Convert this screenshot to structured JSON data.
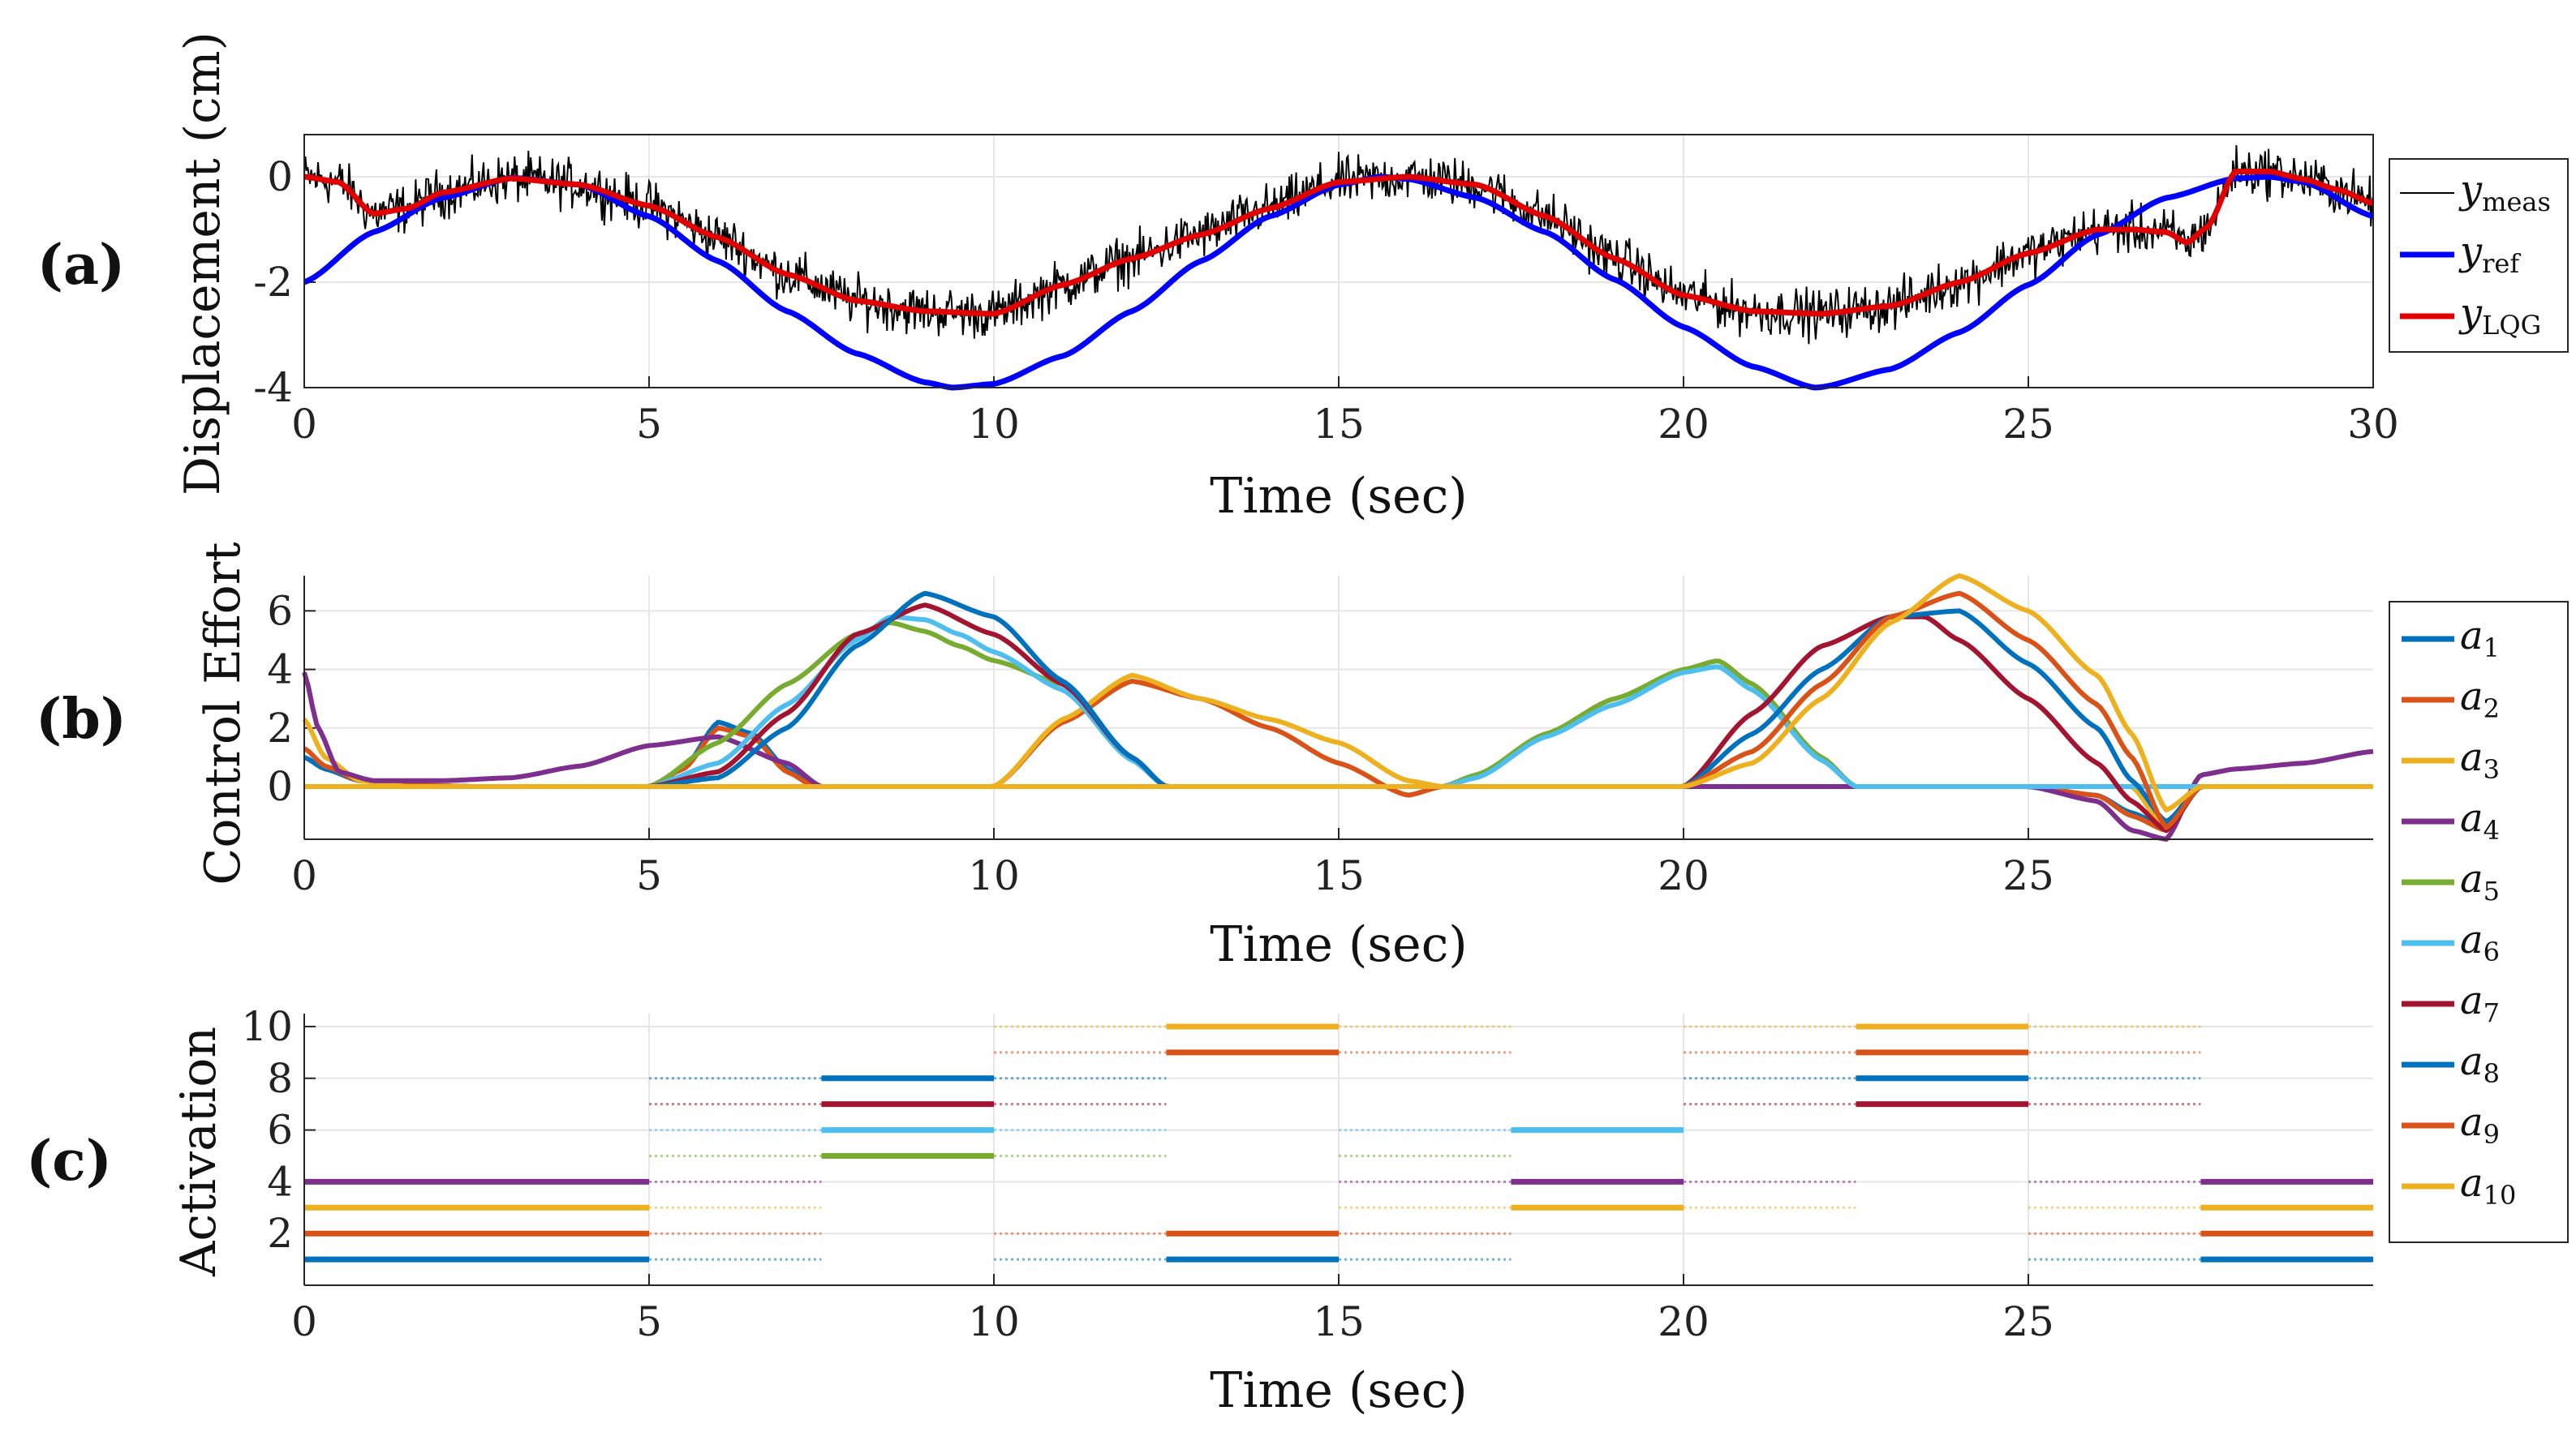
{
  "panels": {
    "a": {
      "label": "(a)",
      "ylabel": "Displacement (cm)",
      "xlabel": "Time (sec)"
    },
    "b": {
      "label": "(b)",
      "ylabel": "Control Effort",
      "xlabel": "Time (sec)"
    },
    "c": {
      "label": "(c)",
      "ylabel": "Activation",
      "xlabel": "Time (sec)"
    }
  },
  "colors": {
    "meas": "#000000",
    "ref": "#0000ff",
    "lqg": "#e00000",
    "a1": "#0072bd",
    "a2": "#d95319",
    "a3": "#edb120",
    "a4": "#7e2f8e",
    "a5": "#77ac30",
    "a6": "#4dbeee",
    "a7": "#a2142f",
    "a8": "#0072bd",
    "a9": "#d95319",
    "a10": "#edb120"
  },
  "chart_data": [
    {
      "type": "line",
      "id": "a",
      "title": "",
      "xlabel": "Time (sec)",
      "ylabel": "Displacement (cm)",
      "xlim": [
        0,
        30
      ],
      "ylim": [
        -4,
        0.8
      ],
      "xticks": [
        0,
        5,
        10,
        15,
        20,
        25,
        30
      ],
      "yticks": [
        -4,
        -2,
        0
      ],
      "ytick_labels": [
        "-4",
        "-2",
        "0"
      ],
      "grid": true,
      "legend_position": "outside-right",
      "legend": [
        {
          "base": "y",
          "sub": "meas"
        },
        {
          "base": "y",
          "sub": "ref"
        },
        {
          "base": "y",
          "sub": "LQG"
        }
      ],
      "series": [
        {
          "name": "y_meas",
          "style": "noisy",
          "noise_amplitude": 0.35,
          "follows": "y_LQG"
        },
        {
          "name": "y_ref",
          "x": [
            0,
            1,
            2,
            3,
            4,
            5,
            6,
            7,
            8,
            9,
            9.4,
            10,
            11,
            12,
            13,
            14,
            15,
            15.6,
            16,
            17,
            18,
            19,
            20,
            21,
            21.9,
            22,
            23,
            24,
            25,
            26,
            27,
            28,
            28.5,
            29,
            30
          ],
          "y": [
            -2,
            -1.05,
            -0.4,
            -0.02,
            -0.15,
            -0.75,
            -1.6,
            -2.55,
            -3.35,
            -3.9,
            -4.0,
            -3.93,
            -3.4,
            -2.55,
            -1.6,
            -0.75,
            -0.15,
            0.0,
            -0.04,
            -0.4,
            -1.05,
            -1.95,
            -2.85,
            -3.6,
            -4.0,
            -3.99,
            -3.65,
            -2.95,
            -2.05,
            -1.1,
            -0.4,
            -0.03,
            0.0,
            -0.1,
            -0.75
          ]
        },
        {
          "name": "y_LQG",
          "x": [
            0,
            0.5,
            1,
            1.5,
            2,
            3,
            4,
            5,
            6,
            7,
            8,
            9,
            10,
            11,
            12,
            13,
            14,
            15,
            16,
            17,
            18,
            19,
            20,
            21,
            22,
            23,
            24,
            25,
            26,
            26.5,
            27,
            27.3,
            27.6,
            28,
            28.5,
            29,
            29.5,
            30
          ],
          "y": [
            0,
            -0.1,
            -0.7,
            -0.6,
            -0.3,
            -0.03,
            -0.15,
            -0.55,
            -1.15,
            -1.85,
            -2.35,
            -2.55,
            -2.6,
            -2.05,
            -1.55,
            -1.1,
            -0.6,
            -0.1,
            0.0,
            -0.15,
            -0.75,
            -1.55,
            -2.25,
            -2.55,
            -2.6,
            -2.45,
            -2.0,
            -1.45,
            -1.0,
            -1.0,
            -1.05,
            -1.25,
            -0.95,
            0.1,
            0.1,
            -0.05,
            -0.25,
            -0.5
          ]
        }
      ]
    },
    {
      "type": "line",
      "id": "b",
      "title": "",
      "xlabel": "Time (sec)",
      "ylabel": "Control Effort",
      "xlim": [
        0,
        30
      ],
      "ylim": [
        -1.8,
        7.2
      ],
      "xticks": [
        0,
        5,
        10,
        15,
        20,
        25
      ],
      "yticks": [
        0,
        2,
        4,
        6
      ],
      "ytick_labels": [
        "0",
        "2",
        "4",
        "6"
      ],
      "grid": true,
      "legend_position": "outside-right",
      "legend": [
        {
          "base": "a",
          "sub": "1"
        },
        {
          "base": "a",
          "sub": "2"
        },
        {
          "base": "a",
          "sub": "3"
        },
        {
          "base": "a",
          "sub": "4"
        },
        {
          "base": "a",
          "sub": "5"
        },
        {
          "base": "a",
          "sub": "6"
        },
        {
          "base": "a",
          "sub": "7"
        },
        {
          "base": "a",
          "sub": "8"
        },
        {
          "base": "a",
          "sub": "9"
        },
        {
          "base": "a",
          "sub": "10"
        }
      ],
      "series": [
        {
          "name": "a1",
          "x": [
            0,
            0.3,
            0.8,
            1.5,
            2.5,
            4,
            5,
            5.5,
            6,
            6.5,
            7,
            7.4,
            7.5,
            10,
            12.4,
            12.5,
            15,
            20,
            22.4,
            22.5,
            25,
            26,
            26.5,
            27,
            27.5,
            30
          ],
          "y": [
            1.0,
            0.6,
            0.2,
            0.05,
            0,
            0,
            0,
            0.6,
            2.2,
            1.8,
            0.6,
            0,
            0,
            0,
            0,
            0,
            0,
            0,
            0,
            0,
            0,
            -0.3,
            -0.9,
            -1.4,
            0,
            0
          ]
        },
        {
          "name": "a2",
          "x": [
            0,
            0.3,
            0.8,
            1.5,
            2.5,
            4,
            5,
            5.5,
            6,
            6.5,
            7,
            7.4,
            7.5,
            10,
            11,
            12,
            13,
            14,
            15,
            16,
            16.5,
            17,
            20,
            22.5,
            25,
            26,
            26.5,
            27,
            27.5,
            30
          ],
          "y": [
            1.3,
            0.7,
            0.2,
            0.05,
            0,
            0,
            0,
            0.6,
            2.0,
            1.7,
            0.5,
            0,
            0,
            0,
            2.2,
            3.6,
            3.0,
            2.0,
            0.8,
            -0.3,
            0,
            0,
            0,
            0,
            0,
            -0.3,
            -1.0,
            -1.5,
            0,
            0
          ]
        },
        {
          "name": "a3",
          "x": [
            0,
            0.3,
            0.8,
            1.5,
            2.5,
            10,
            11,
            12,
            13,
            14,
            15,
            16,
            16.5,
            20,
            22.5,
            24,
            25,
            25.5,
            26,
            26.5,
            27,
            27.5,
            30
          ],
          "y": [
            2.3,
            1.0,
            0.2,
            0,
            0,
            0,
            2.3,
            3.8,
            3.0,
            2.3,
            1.5,
            0.2,
            0,
            0,
            0,
            0,
            0,
            0,
            0,
            0,
            -1.5,
            0,
            0
          ]
        },
        {
          "name": "a4",
          "x": [
            0,
            0.2,
            0.5,
            1,
            2,
            3,
            4,
            5,
            6,
            7,
            7.5,
            10,
            15,
            20,
            25,
            26,
            26.5,
            27,
            27.5,
            28,
            29,
            30
          ],
          "y": [
            3.9,
            2.0,
            0.5,
            0.2,
            0.2,
            0.3,
            0.7,
            1.4,
            1.7,
            0.8,
            0,
            0,
            0,
            0,
            0,
            -0.5,
            -1.5,
            -1.8,
            0.4,
            0.6,
            0.8,
            1.2
          ]
        },
        {
          "name": "a5",
          "x": [
            0,
            5,
            6,
            7,
            8,
            8.5,
            9,
            9.5,
            10,
            11,
            12,
            12.5,
            15,
            16.5,
            17,
            18,
            19,
            20,
            20.5,
            21,
            22,
            22.5,
            25,
            30
          ],
          "y": [
            0,
            0,
            1.5,
            3.5,
            5.2,
            5.6,
            5.3,
            4.8,
            4.3,
            3.5,
            1.0,
            0,
            0,
            0,
            0.4,
            1.8,
            3.0,
            4.0,
            4.3,
            3.5,
            1.0,
            0,
            0,
            0
          ]
        },
        {
          "name": "a6",
          "x": [
            0,
            5,
            6,
            7,
            8,
            8.5,
            9,
            9.5,
            10,
            11,
            12,
            12.5,
            15,
            16.5,
            17,
            18,
            19,
            20,
            20.5,
            21,
            22,
            22.5,
            25,
            30
          ],
          "y": [
            0,
            0,
            0.8,
            2.8,
            5.0,
            5.8,
            5.7,
            5.2,
            4.6,
            3.3,
            0.9,
            0,
            0,
            0,
            0.3,
            1.7,
            2.8,
            3.9,
            4.1,
            3.3,
            0.9,
            0,
            0,
            0
          ]
        },
        {
          "name": "a7",
          "x": [
            0,
            5,
            6,
            7,
            8,
            9,
            10,
            11,
            12,
            12.5,
            15,
            20,
            21,
            22,
            23,
            23.5,
            24,
            25,
            26,
            26.5,
            27,
            27.5,
            30
          ],
          "y": [
            0,
            0,
            0.5,
            2.5,
            5.2,
            6.2,
            5.2,
            3.5,
            1.0,
            0,
            0,
            0,
            2.5,
            4.8,
            5.8,
            5.8,
            5.0,
            3.0,
            0.8,
            -0.5,
            -1.5,
            0,
            0
          ]
        },
        {
          "name": "a8",
          "x": [
            0,
            5,
            6,
            7,
            8,
            9,
            10,
            11,
            12,
            12.5,
            15,
            20,
            21,
            22,
            23,
            24,
            25,
            26,
            26.5,
            27,
            27.5,
            30
          ],
          "y": [
            0,
            0,
            0.3,
            2.0,
            4.8,
            6.6,
            5.8,
            3.6,
            1.0,
            0,
            0,
            0,
            1.8,
            4.0,
            5.8,
            6.0,
            4.2,
            2.0,
            0.2,
            -1.2,
            0,
            0
          ]
        },
        {
          "name": "a9",
          "x": [
            0,
            10,
            15,
            20,
            21,
            22,
            23,
            24,
            25,
            26,
            26.5,
            27,
            27.5,
            30
          ],
          "y": [
            0,
            0,
            0,
            0,
            1.2,
            3.5,
            5.8,
            6.6,
            5.0,
            2.8,
            1.0,
            -1.4,
            0,
            0
          ]
        },
        {
          "name": "a10",
          "x": [
            0,
            10,
            15,
            20,
            21,
            22,
            23,
            24,
            25,
            26,
            26.5,
            27,
            27.5,
            30
          ],
          "y": [
            0,
            0,
            0,
            0,
            0.8,
            3.0,
            5.6,
            7.2,
            6.0,
            3.8,
            1.8,
            -0.8,
            0,
            0
          ]
        }
      ]
    },
    {
      "type": "line",
      "id": "c",
      "title": "",
      "xlabel": "Time (sec)",
      "ylabel": "Activation",
      "xlim": [
        0,
        30
      ],
      "ylim": [
        0,
        10.5
      ],
      "xticks": [
        0,
        5,
        10,
        15,
        20,
        25
      ],
      "yticks": [
        2,
        4,
        6,
        8,
        10
      ],
      "ytick_labels": [
        "2",
        "4",
        "6",
        "8",
        "10"
      ],
      "grid": true,
      "series": [
        {
          "name": "a1",
          "level": 1,
          "solid": [
            [
              0,
              5
            ],
            [
              12.5,
              15
            ],
            [
              27.5,
              30
            ]
          ],
          "dotted": [
            [
              5,
              7.5
            ],
            [
              10,
              12.5
            ],
            [
              15,
              17.5
            ],
            [
              25,
              27.5
            ]
          ]
        },
        {
          "name": "a2",
          "level": 2,
          "solid": [
            [
              0,
              5
            ],
            [
              12.5,
              15
            ],
            [
              27.5,
              30
            ]
          ],
          "dotted": [
            [
              5,
              7.5
            ],
            [
              10,
              12.5
            ],
            [
              15,
              17.5
            ],
            [
              25,
              27.5
            ]
          ]
        },
        {
          "name": "a3",
          "level": 3,
          "solid": [
            [
              0,
              5
            ],
            [
              17.5,
              20
            ],
            [
              27.5,
              30
            ]
          ],
          "dotted": [
            [
              5,
              7.5
            ],
            [
              15,
              17.5
            ],
            [
              20,
              22.5
            ],
            [
              25,
              27.5
            ]
          ]
        },
        {
          "name": "a4",
          "level": 4,
          "solid": [
            [
              0,
              5
            ],
            [
              17.5,
              20
            ],
            [
              27.5,
              30
            ]
          ],
          "dotted": [
            [
              5,
              7.5
            ],
            [
              15,
              17.5
            ],
            [
              20,
              22.5
            ],
            [
              25,
              27.5
            ]
          ]
        },
        {
          "name": "a5",
          "level": 5,
          "solid": [
            [
              7.5,
              10
            ]
          ],
          "dotted": [
            [
              5,
              7.5
            ],
            [
              10,
              12.5
            ],
            [
              15,
              17.5
            ]
          ]
        },
        {
          "name": "a6",
          "level": 6,
          "solid": [
            [
              7.5,
              10
            ],
            [
              17.5,
              20
            ]
          ],
          "dotted": [
            [
              5,
              7.5
            ],
            [
              10,
              12.5
            ],
            [
              15,
              17.5
            ]
          ]
        },
        {
          "name": "a7",
          "level": 7,
          "solid": [
            [
              7.5,
              10
            ],
            [
              22.5,
              25
            ]
          ],
          "dotted": [
            [
              5,
              7.5
            ],
            [
              10,
              12.5
            ],
            [
              20,
              22.5
            ],
            [
              25,
              27.5
            ]
          ]
        },
        {
          "name": "a8",
          "level": 8,
          "solid": [
            [
              7.5,
              10
            ],
            [
              22.5,
              25
            ]
          ],
          "dotted": [
            [
              5,
              7.5
            ],
            [
              10,
              12.5
            ],
            [
              20,
              22.5
            ],
            [
              25,
              27.5
            ]
          ]
        },
        {
          "name": "a9",
          "level": 9,
          "solid": [
            [
              12.5,
              15
            ],
            [
              22.5,
              25
            ]
          ],
          "dotted": [
            [
              10,
              12.5
            ],
            [
              15,
              17.5
            ],
            [
              20,
              22.5
            ],
            [
              25,
              27.5
            ]
          ]
        },
        {
          "name": "a10",
          "level": 10,
          "solid": [
            [
              12.5,
              15
            ],
            [
              22.5,
              25
            ]
          ],
          "dotted": [
            [
              10,
              12.5
            ],
            [
              15,
              17.5
            ],
            [
              20,
              22.5
            ],
            [
              25,
              27.5
            ]
          ]
        }
      ]
    }
  ]
}
